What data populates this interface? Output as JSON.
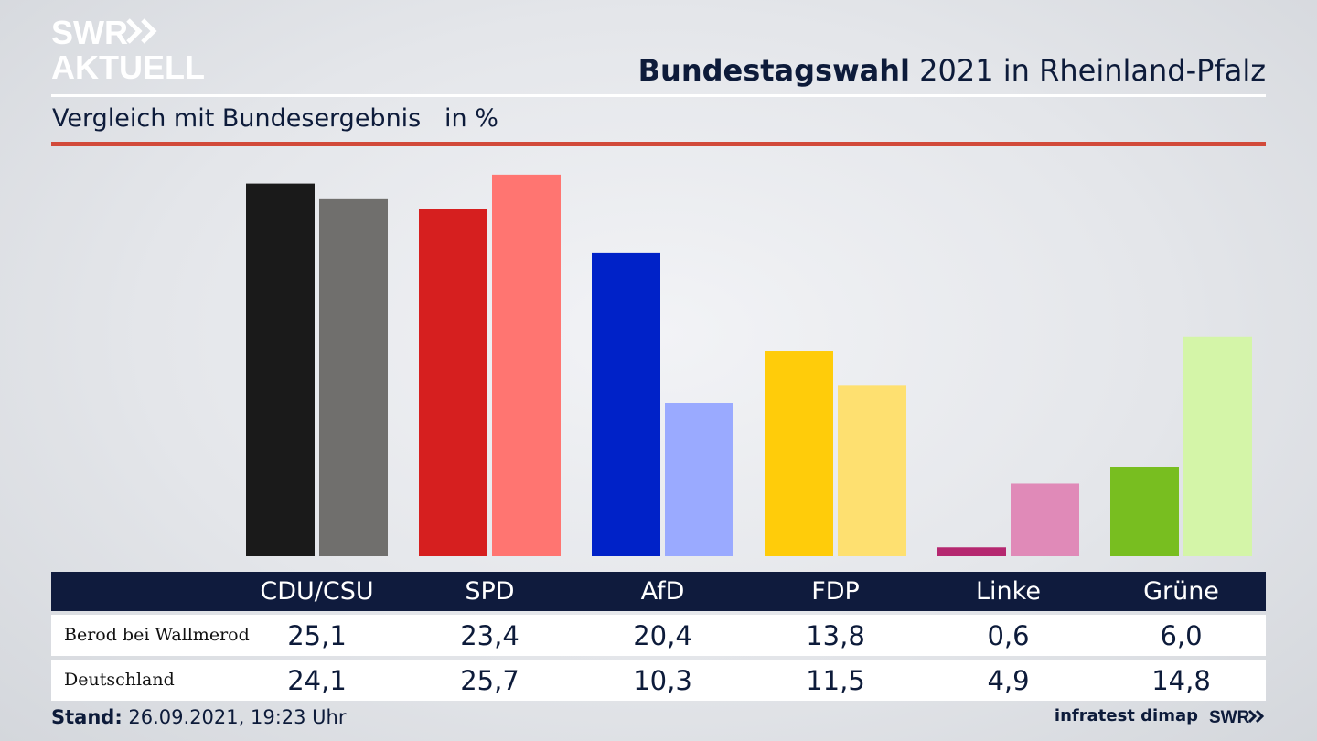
{
  "brand": {
    "logo_line1": "SWR",
    "logo_line2": "AKTUELL",
    "footer_logo": "SWR",
    "arrow_icon": "double-chevron-right-icon"
  },
  "header": {
    "title_bold": "Bundestagswahl",
    "title_rest": " 2021 in Rheinland-Pfalz",
    "subtitle": "Vergleich mit Bundesergebnis   in %"
  },
  "colors": {
    "rule_red": "#d24a3a",
    "table_header": "#0f1b3d"
  },
  "chart_data": {
    "type": "bar",
    "categories": [
      "CDU/CSU",
      "SPD",
      "AfD",
      "FDP",
      "Linke",
      "Grüne"
    ],
    "series": [
      {
        "name": "Berod bei Wallmerod",
        "values": [
          25.1,
          23.4,
          20.4,
          13.8,
          0.6,
          6.0
        ],
        "labels": [
          "25,1",
          "23,4",
          "20,4",
          "13,8",
          "0,6",
          "6,0"
        ],
        "colors": [
          "#1a1a1a",
          "#d61f1f",
          "#0022c8",
          "#ffcc0a",
          "#b52870",
          "#78be20"
        ]
      },
      {
        "name": "Deutschland",
        "values": [
          24.1,
          25.7,
          10.3,
          11.5,
          4.9,
          14.8
        ],
        "labels": [
          "24,1",
          "25,7",
          "10,3",
          "11,5",
          "4,9",
          "14,8"
        ],
        "colors": [
          "#706f6d",
          "#ff7571",
          "#9aaaff",
          "#fee070",
          "#e08ab8",
          "#d4f5a8"
        ]
      }
    ],
    "ylim": [
      0,
      26
    ],
    "grid": false,
    "legend": "table-below"
  },
  "footer": {
    "stand_label": "Stand:",
    "stand_value": " 26.09.2021, 19:23 Uhr",
    "source": "infratest dimap"
  }
}
